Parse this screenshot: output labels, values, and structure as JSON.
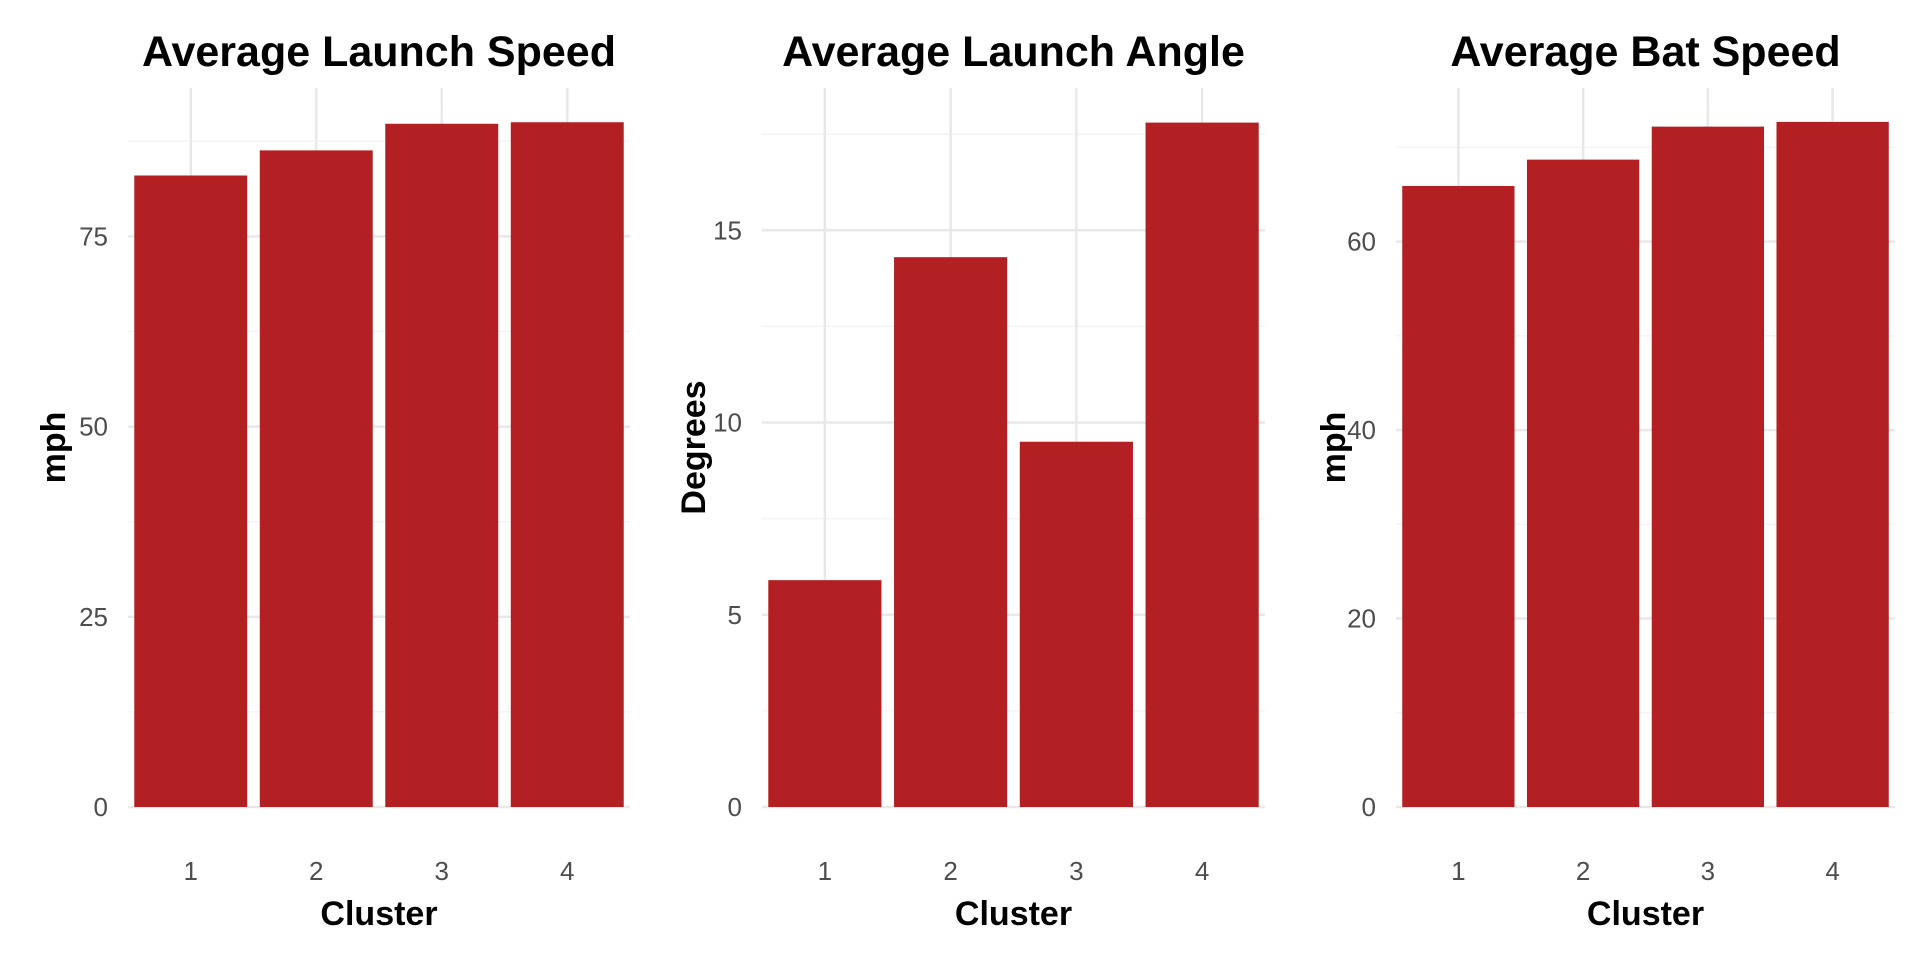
{
  "colors": {
    "bar": "#B22024",
    "grid_major": "#E8E8E8",
    "grid_minor": "#F3F3F3",
    "background": "#FFFFFF"
  },
  "chart_data": [
    {
      "type": "bar",
      "title": "Average Launch Speed",
      "xlabel": "Cluster",
      "ylabel": "mph",
      "categories": [
        "1",
        "2",
        "3",
        "4"
      ],
      "values": [
        83.0,
        86.3,
        89.8,
        90.0
      ],
      "ylim": [
        0,
        94.5
      ],
      "yticks": [
        0,
        25,
        50,
        75
      ],
      "ytick_labels": [
        "0",
        "25",
        "50",
        "75"
      ],
      "grid": true,
      "legend": "none"
    },
    {
      "type": "bar",
      "title": "Average Launch Angle",
      "xlabel": "Cluster",
      "ylabel": "Degrees",
      "categories": [
        "1",
        "2",
        "3",
        "4"
      ],
      "values": [
        5.9,
        14.3,
        9.5,
        17.8
      ],
      "ylim": [
        0,
        18.7
      ],
      "yticks": [
        0,
        5,
        10,
        15
      ],
      "ytick_labels": [
        "0",
        "5",
        "10",
        "15"
      ],
      "grid": true,
      "legend": "none"
    },
    {
      "type": "bar",
      "title": "Average Bat Speed",
      "xlabel": "Cluster",
      "ylabel": "mph",
      "categories": [
        "1",
        "2",
        "3",
        "4"
      ],
      "values": [
        65.9,
        68.7,
        72.2,
        72.7
      ],
      "ylim": [
        0,
        76.3
      ],
      "yticks": [
        0,
        20,
        40,
        60
      ],
      "ytick_labels": [
        "0",
        "20",
        "40",
        "60"
      ],
      "grid": true,
      "legend": "none"
    }
  ]
}
